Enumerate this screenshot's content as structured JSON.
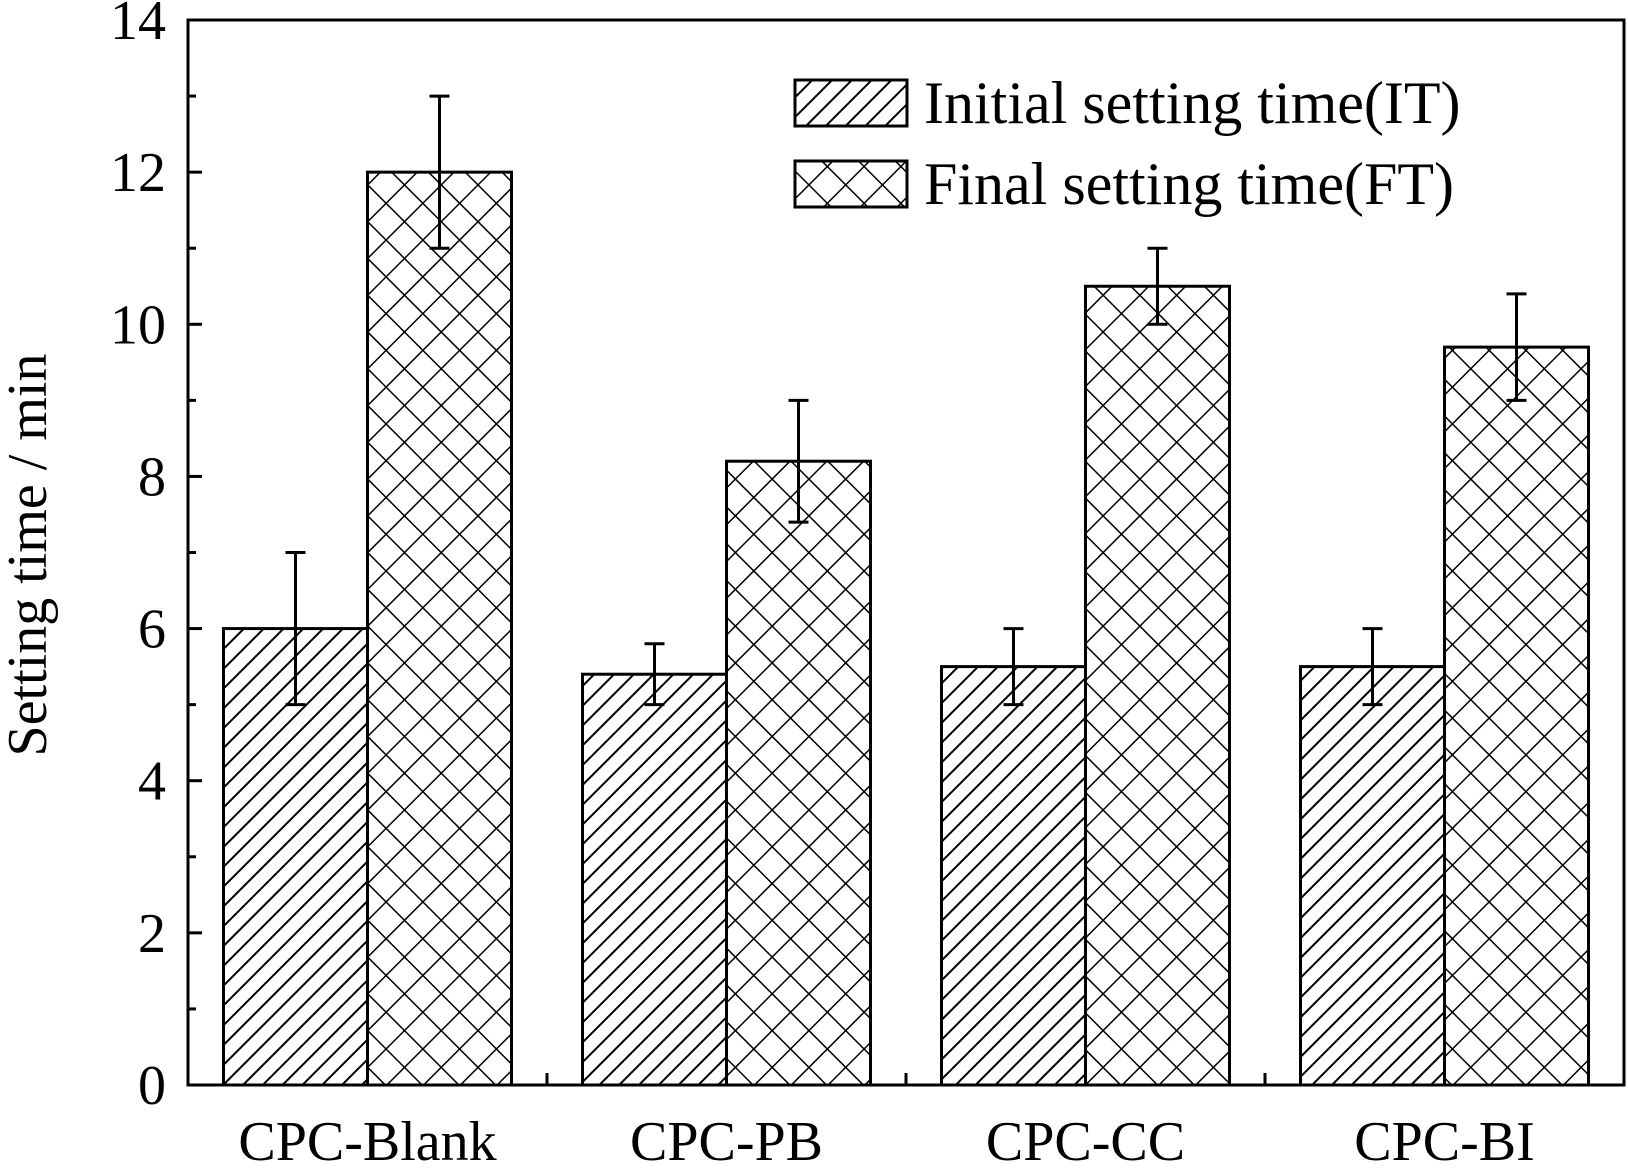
{
  "chart_data": {
    "type": "bar",
    "title": "",
    "xlabel": "",
    "ylabel": "Setting time / min",
    "ylim": [
      0,
      14
    ],
    "yticks": [
      0,
      2,
      4,
      6,
      8,
      10,
      12,
      14
    ],
    "grid": false,
    "legend_position": "top-right",
    "categories": [
      "CPC-Blank",
      "CPC-PB",
      "CPC-CC",
      "CPC-BI"
    ],
    "series": [
      {
        "name": "Initial setting time(IT)",
        "pattern": "diagonal-hatch",
        "values": [
          6.0,
          5.4,
          5.5,
          5.5
        ],
        "errors": [
          1.0,
          0.4,
          0.5,
          0.5
        ]
      },
      {
        "name": "Final setting time(FT)",
        "pattern": "cross-hatch",
        "values": [
          12.0,
          8.2,
          10.5,
          9.7
        ],
        "errors": [
          1.0,
          0.8,
          0.5,
          0.7
        ]
      }
    ],
    "colors": {
      "stroke": "#000000",
      "fill": "#ffffff"
    }
  }
}
